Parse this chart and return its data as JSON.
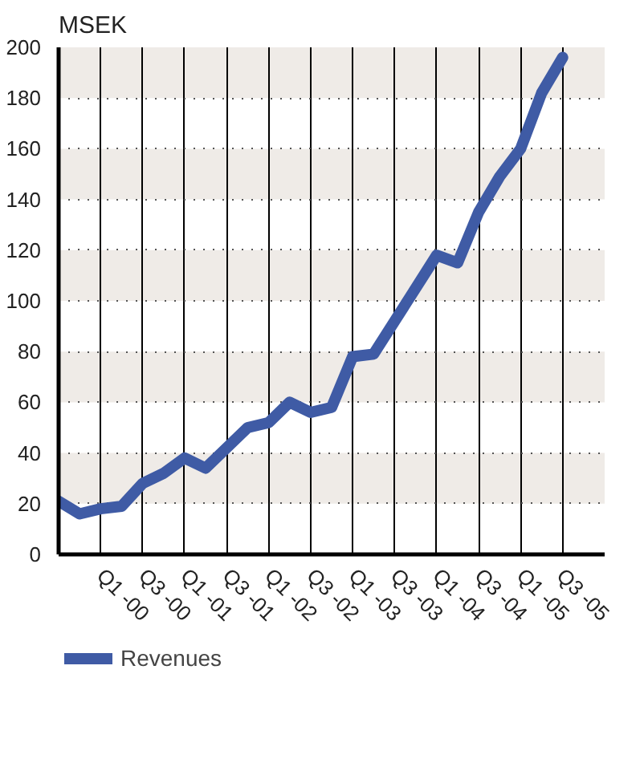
{
  "chart_data": {
    "type": "line",
    "ylabel": "MSEK",
    "categories": [
      null,
      null,
      "Q1 -00",
      null,
      "Q3 -00",
      null,
      "Q1 -01",
      null,
      "Q3 -01",
      null,
      "Q1 -02",
      null,
      "Q3 -02",
      null,
      "Q1 -03",
      null,
      "Q3 -03",
      null,
      "Q1 -04",
      null,
      "Q3 -04",
      null,
      "Q1 -05",
      null,
      "Q3 -05"
    ],
    "series": [
      {
        "name": "Revenues",
        "color": "#3f5ba5",
        "values": [
          21,
          16,
          18,
          19,
          28,
          32,
          38,
          34,
          42,
          50,
          52,
          60,
          56,
          58,
          78,
          79,
          92,
          105,
          118,
          115,
          135,
          149,
          160,
          182,
          196
        ]
      }
    ],
    "ylim": [
      0,
      200
    ],
    "yticks": [
      0,
      20,
      40,
      60,
      80,
      100,
      120,
      140,
      160,
      180,
      200
    ],
    "bands": [
      {
        "axis": "y",
        "from": 20,
        "to": 40,
        "color": "#efebe7"
      },
      {
        "axis": "y",
        "from": 60,
        "to": 80,
        "color": "#efebe7"
      },
      {
        "axis": "y",
        "from": 100,
        "to": 120,
        "color": "#efebe7"
      },
      {
        "axis": "y",
        "from": 140,
        "to": 160,
        "color": "#efebe7"
      },
      {
        "axis": "y",
        "from": 180,
        "to": 200,
        "color": "#efebe7"
      }
    ],
    "grid": true,
    "legend": "bottom left",
    "marker": "none",
    "line_style": "solid"
  }
}
